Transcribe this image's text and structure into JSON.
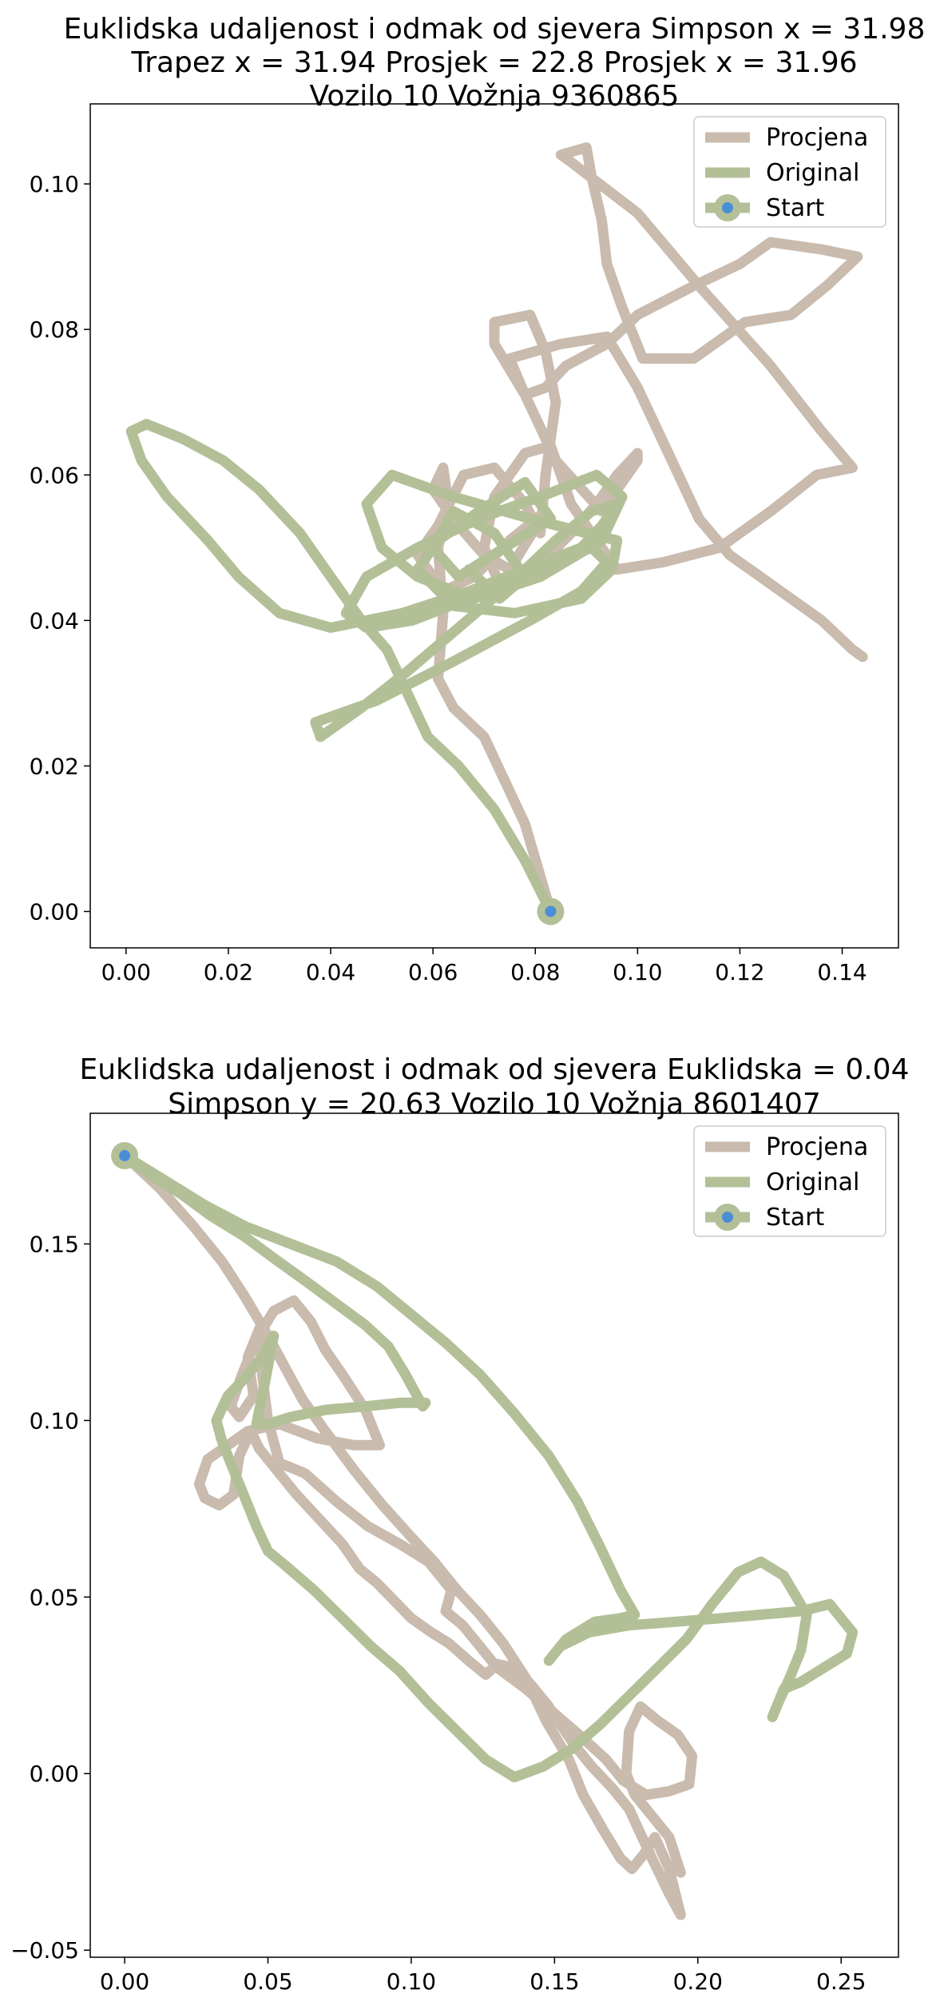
{
  "colors": {
    "estimate": "#c9bbad",
    "original": "#b3c097",
    "start_marker": "#4a8ed6"
  },
  "chart_data": [
    {
      "type": "line",
      "title": [
        "Euklidska udaljenost i odmak od sjevera Simpson x = 31.98",
        "Trapez x = 31.94 Prosjek = 22.8 Prosjek x = 31.96",
        "Vozilo 10 Vožnja 9360865"
      ],
      "xlabel": "",
      "ylabel": "",
      "xlim": [
        -0.007,
        0.151
      ],
      "ylim": [
        -0.005,
        0.111
      ],
      "xticks": [
        0.0,
        0.02,
        0.04,
        0.06,
        0.08,
        0.1,
        0.12,
        0.14
      ],
      "xtick_labels": [
        "0.00",
        "0.02",
        "0.04",
        "0.06",
        "0.08",
        "0.10",
        "0.12",
        "0.14"
      ],
      "yticks": [
        0.0,
        0.02,
        0.04,
        0.06,
        0.08,
        0.1
      ],
      "ytick_labels": [
        "0.00",
        "0.02",
        "0.04",
        "0.06",
        "0.08",
        "0.10"
      ],
      "grid": false,
      "legend": {
        "position": "top-right",
        "entries": [
          "Procjena",
          "Original",
          "Start"
        ]
      },
      "series": [
        {
          "name": "Procjena",
          "x": [
            0.083,
            0.078,
            0.07,
            0.064,
            0.061,
            0.062,
            0.061,
            0.063,
            0.062,
            0.06,
            0.065,
            0.07,
            0.075,
            0.082,
            0.075,
            0.068,
            0.062,
            0.057,
            0.061,
            0.066,
            0.072,
            0.078,
            0.081,
            0.082,
            0.084,
            0.082,
            0.079,
            0.072,
            0.072,
            0.078,
            0.082,
            0.086,
            0.094,
            0.1,
            0.111,
            0.12,
            0.126,
            0.136,
            0.143,
            0.137,
            0.13,
            0.121,
            0.111,
            0.101,
            0.097,
            0.094,
            0.093,
            0.091,
            0.09,
            0.085,
            0.087,
            0.1,
            0.112,
            0.126,
            0.136,
            0.142,
            0.135,
            0.126,
            0.116,
            0.105,
            0.096,
            0.087,
            0.083,
            0.078,
            0.072,
            0.07,
            0.073,
            0.08,
            0.087,
            0.092,
            0.096,
            0.1,
            0.1,
            0.093,
            0.084,
            0.078,
            0.075,
            0.085,
            0.094,
            0.1,
            0.104,
            0.108,
            0.112,
            0.118,
            0.124,
            0.13,
            0.136,
            0.142,
            0.144
          ],
          "y": [
            0.0,
            0.012,
            0.024,
            0.028,
            0.032,
            0.041,
            0.05,
            0.056,
            0.061,
            0.058,
            0.053,
            0.049,
            0.047,
            0.055,
            0.051,
            0.046,
            0.044,
            0.049,
            0.053,
            0.06,
            0.061,
            0.056,
            0.052,
            0.06,
            0.07,
            0.077,
            0.082,
            0.081,
            0.078,
            0.071,
            0.072,
            0.075,
            0.078,
            0.082,
            0.086,
            0.089,
            0.092,
            0.091,
            0.09,
            0.086,
            0.082,
            0.081,
            0.076,
            0.076,
            0.083,
            0.089,
            0.095,
            0.101,
            0.105,
            0.104,
            0.103,
            0.096,
            0.086,
            0.075,
            0.066,
            0.061,
            0.06,
            0.055,
            0.05,
            0.048,
            0.047,
            0.056,
            0.064,
            0.063,
            0.057,
            0.05,
            0.045,
            0.047,
            0.052,
            0.056,
            0.06,
            0.063,
            0.062,
            0.055,
            0.062,
            0.071,
            0.076,
            0.078,
            0.079,
            0.072,
            0.066,
            0.06,
            0.054,
            0.049,
            0.046,
            0.043,
            0.04,
            0.036,
            0.035
          ]
        },
        {
          "name": "Original",
          "x": [
            0.083,
            0.078,
            0.072,
            0.065,
            0.059,
            0.055,
            0.051,
            0.046,
            0.04,
            0.034,
            0.026,
            0.019,
            0.011,
            0.004,
            0.001,
            0.003,
            0.008,
            0.016,
            0.022,
            0.03,
            0.04,
            0.054,
            0.067,
            0.078,
            0.089,
            0.093,
            0.096,
            0.091,
            0.084,
            0.075,
            0.065,
            0.055,
            0.046,
            0.038,
            0.037,
            0.049,
            0.063,
            0.079,
            0.089,
            0.094,
            0.091,
            0.08,
            0.067,
            0.056,
            0.047,
            0.043,
            0.047,
            0.057,
            0.069,
            0.081,
            0.092,
            0.097,
            0.093,
            0.081,
            0.068,
            0.057,
            0.05,
            0.047,
            0.052,
            0.064,
            0.079,
            0.09,
            0.096,
            0.095,
            0.089,
            0.076,
            0.064,
            0.057,
            0.061,
            0.069,
            0.078,
            0.083,
            0.074,
            0.065,
            0.06,
            0.064,
            0.072,
            0.078,
            0.073,
            0.067
          ],
          "y": [
            0.0,
            0.007,
            0.014,
            0.02,
            0.024,
            0.03,
            0.036,
            0.04,
            0.046,
            0.052,
            0.058,
            0.062,
            0.065,
            0.067,
            0.066,
            0.062,
            0.057,
            0.051,
            0.046,
            0.041,
            0.039,
            0.041,
            0.044,
            0.047,
            0.05,
            0.053,
            0.056,
            0.055,
            0.051,
            0.045,
            0.039,
            0.033,
            0.028,
            0.024,
            0.026,
            0.029,
            0.034,
            0.04,
            0.044,
            0.048,
            0.05,
            0.047,
            0.043,
            0.04,
            0.039,
            0.041,
            0.046,
            0.05,
            0.054,
            0.057,
            0.06,
            0.057,
            0.051,
            0.046,
            0.043,
            0.046,
            0.05,
            0.056,
            0.06,
            0.057,
            0.054,
            0.052,
            0.051,
            0.047,
            0.043,
            0.041,
            0.042,
            0.047,
            0.051,
            0.055,
            0.059,
            0.054,
            0.05,
            0.046,
            0.05,
            0.055,
            0.052,
            0.046,
            0.043,
            0.047
          ]
        }
      ],
      "start": {
        "x": 0.083,
        "y": 0.0
      }
    },
    {
      "type": "line",
      "title": [
        "Euklidska udaljenost i odmak od sjevera Euklidska = 0.04",
        "Simpson y = 20.63 Vozilo 10 Vožnja 8601407"
      ],
      "xlabel": "",
      "ylabel": "",
      "xlim": [
        -0.012,
        0.27
      ],
      "ylim": [
        -0.052,
        0.187
      ],
      "xticks": [
        0.0,
        0.05,
        0.1,
        0.15,
        0.2,
        0.25
      ],
      "xtick_labels": [
        "0.00",
        "0.05",
        "0.10",
        "0.15",
        "0.20",
        "0.25"
      ],
      "yticks": [
        -0.05,
        0.0,
        0.05,
        0.1,
        0.15
      ],
      "ytick_labels": [
        "−0.05",
        "0.00",
        "0.05",
        "0.10",
        "0.15"
      ],
      "grid": false,
      "legend": {
        "position": "top-right",
        "entries": [
          "Procjena",
          "Original",
          "Start"
        ]
      },
      "series": [
        {
          "name": "Procjena",
          "x": [
            0.0,
            0.012,
            0.024,
            0.034,
            0.042,
            0.05,
            0.056,
            0.062,
            0.07,
            0.08,
            0.09,
            0.1,
            0.108,
            0.116,
            0.124,
            0.132,
            0.14,
            0.147,
            0.155,
            0.16,
            0.167,
            0.173,
            0.177,
            0.181,
            0.185,
            0.19,
            0.194,
            0.19,
            0.184,
            0.18,
            0.176,
            0.17,
            0.163,
            0.157,
            0.152,
            0.148,
            0.142,
            0.136,
            0.13,
            0.126,
            0.12,
            0.113,
            0.107,
            0.1,
            0.094,
            0.088,
            0.082,
            0.076,
            0.068,
            0.06,
            0.053,
            0.047,
            0.044,
            0.04,
            0.038,
            0.033,
            0.028,
            0.026,
            0.029,
            0.036,
            0.043,
            0.054,
            0.067,
            0.08,
            0.089,
            0.084,
            0.076,
            0.07,
            0.065,
            0.059,
            0.052,
            0.046,
            0.041,
            0.037,
            0.04,
            0.045,
            0.043,
            0.047,
            0.048,
            0.05,
            0.054,
            0.063,
            0.074,
            0.085,
            0.096,
            0.106,
            0.114,
            0.112,
            0.118,
            0.124,
            0.13,
            0.14,
            0.15,
            0.16,
            0.168,
            0.174,
            0.182,
            0.19,
            0.197,
            0.198,
            0.193,
            0.186,
            0.18,
            0.176,
            0.175,
            0.178,
            0.184,
            0.19,
            0.194
          ],
          "y": [
            0.175,
            0.166,
            0.155,
            0.145,
            0.135,
            0.124,
            0.115,
            0.106,
            0.097,
            0.086,
            0.076,
            0.067,
            0.06,
            0.052,
            0.045,
            0.037,
            0.027,
            0.015,
            0.004,
            -0.006,
            -0.016,
            -0.024,
            -0.027,
            -0.023,
            -0.018,
            -0.027,
            -0.04,
            -0.034,
            -0.024,
            -0.017,
            -0.01,
            -0.004,
            0.002,
            0.008,
            0.014,
            0.019,
            0.025,
            0.03,
            0.031,
            0.028,
            0.032,
            0.037,
            0.04,
            0.044,
            0.049,
            0.054,
            0.058,
            0.065,
            0.072,
            0.079,
            0.086,
            0.092,
            0.097,
            0.09,
            0.079,
            0.076,
            0.078,
            0.082,
            0.089,
            0.093,
            0.097,
            0.099,
            0.095,
            0.093,
            0.093,
            0.103,
            0.113,
            0.12,
            0.128,
            0.134,
            0.131,
            0.123,
            0.113,
            0.104,
            0.101,
            0.107,
            0.118,
            0.126,
            0.113,
            0.1,
            0.088,
            0.085,
            0.077,
            0.07,
            0.065,
            0.06,
            0.052,
            0.046,
            0.042,
            0.036,
            0.03,
            0.024,
            0.017,
            0.01,
            0.004,
            -0.002,
            -0.006,
            -0.005,
            -0.003,
            0.005,
            0.011,
            0.015,
            0.019,
            0.012,
            0.0,
            -0.006,
            -0.012,
            -0.018,
            -0.028
          ]
        },
        {
          "name": "Original",
          "x": [
            0.0,
            0.014,
            0.028,
            0.042,
            0.058,
            0.074,
            0.088,
            0.1,
            0.112,
            0.124,
            0.136,
            0.148,
            0.158,
            0.166,
            0.173,
            0.178,
            0.173,
            0.164,
            0.154,
            0.148,
            0.152,
            0.162,
            0.176,
            0.192,
            0.208,
            0.222,
            0.236,
            0.246,
            0.254,
            0.252,
            0.244,
            0.236,
            0.23,
            0.228,
            0.226,
            0.228,
            0.232,
            0.236,
            0.238,
            0.23,
            0.222,
            0.214,
            0.205,
            0.196,
            0.186,
            0.176,
            0.166,
            0.156,
            0.146,
            0.136,
            0.126,
            0.116,
            0.106,
            0.096,
            0.086,
            0.076,
            0.066,
            0.056,
            0.05,
            0.046,
            0.042,
            0.038,
            0.034,
            0.032,
            0.036,
            0.042,
            0.048,
            0.052,
            0.049,
            0.046,
            0.05,
            0.058,
            0.07,
            0.084,
            0.096,
            0.105,
            0.104,
            0.098,
            0.092,
            0.084,
            0.074,
            0.064,
            0.052,
            0.042,
            0.03,
            0.02,
            0.01,
            0.0
          ],
          "y": [
            0.175,
            0.168,
            0.161,
            0.155,
            0.15,
            0.145,
            0.138,
            0.13,
            0.122,
            0.113,
            0.102,
            0.09,
            0.077,
            0.064,
            0.052,
            0.045,
            0.044,
            0.043,
            0.038,
            0.032,
            0.036,
            0.04,
            0.042,
            0.043,
            0.044,
            0.045,
            0.046,
            0.048,
            0.04,
            0.034,
            0.03,
            0.026,
            0.024,
            0.02,
            0.016,
            0.02,
            0.027,
            0.035,
            0.045,
            0.056,
            0.06,
            0.057,
            0.048,
            0.038,
            0.03,
            0.022,
            0.014,
            0.007,
            0.002,
            -0.001,
            0.004,
            0.012,
            0.02,
            0.029,
            0.036,
            0.044,
            0.052,
            0.059,
            0.063,
            0.07,
            0.078,
            0.086,
            0.094,
            0.1,
            0.107,
            0.112,
            0.118,
            0.124,
            0.111,
            0.099,
            0.099,
            0.101,
            0.103,
            0.104,
            0.105,
            0.105,
            0.104,
            0.113,
            0.121,
            0.127,
            0.133,
            0.139,
            0.146,
            0.152,
            0.158,
            0.164,
            0.169,
            0.175
          ]
        }
      ],
      "start": {
        "x": 0.0,
        "y": 0.175
      }
    }
  ]
}
